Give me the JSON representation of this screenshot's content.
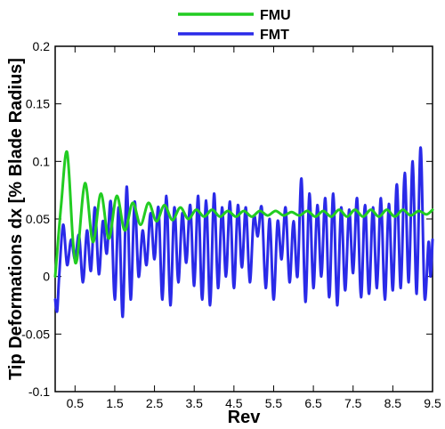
{
  "chart_data": {
    "type": "line",
    "title": "",
    "xlabel": "Rev",
    "ylabel": "Tip Deformations dx [% Blade Radius]",
    "xlim": [
      0,
      9.5
    ],
    "ylim": [
      -0.1,
      0.2
    ],
    "xticks": [
      0.5,
      1.5,
      2.5,
      3.5,
      4.5,
      5.5,
      6.5,
      7.5,
      8.5,
      9.5
    ],
    "xtick_labels": [
      "0.5",
      "1.5",
      "2.5",
      "3.5",
      "4.5",
      "5.5",
      "6.5",
      "7.5",
      "8.5",
      "9.5"
    ],
    "yticks": [
      -0.1,
      -0.05,
      0,
      0.05,
      0.1,
      0.15,
      0.2
    ],
    "ytick_labels": [
      "-0.1",
      "-0.05",
      "0",
      "0.05",
      "0.1",
      "0.15",
      "0.2"
    ],
    "legend_position": "top-center",
    "grid": false,
    "series": [
      {
        "name": "FMU",
        "color": "#22cc22",
        "x": [
          0.0,
          0.15,
          0.3,
          0.45,
          0.55,
          0.75,
          0.95,
          1.15,
          1.35,
          1.55,
          1.75,
          1.95,
          2.15,
          2.35,
          2.55,
          2.75,
          2.95,
          3.15,
          3.35,
          3.55,
          3.75,
          3.95,
          4.15,
          4.35,
          4.55,
          4.75,
          4.95,
          5.15,
          5.35,
          5.55,
          5.75,
          5.95,
          6.15,
          6.35,
          6.55,
          6.75,
          6.95,
          7.15,
          7.35,
          7.55,
          7.75,
          7.95,
          8.15,
          8.35,
          8.55,
          8.75,
          8.95,
          9.15,
          9.35,
          9.5
        ],
        "y": [
          0.0,
          0.062,
          0.108,
          0.03,
          0.015,
          0.081,
          0.03,
          0.072,
          0.033,
          0.07,
          0.04,
          0.064,
          0.045,
          0.064,
          0.048,
          0.062,
          0.049,
          0.06,
          0.05,
          0.058,
          0.052,
          0.058,
          0.052,
          0.057,
          0.052,
          0.057,
          0.052,
          0.057,
          0.053,
          0.057,
          0.053,
          0.056,
          0.053,
          0.057,
          0.052,
          0.057,
          0.052,
          0.058,
          0.052,
          0.058,
          0.052,
          0.058,
          0.052,
          0.058,
          0.052,
          0.058,
          0.053,
          0.057,
          0.054,
          0.058
        ]
      },
      {
        "name": "FMT",
        "color": "#2a2ae8",
        "x": [
          0.0,
          0.05,
          0.1,
          0.2,
          0.3,
          0.4,
          0.5,
          0.6,
          0.7,
          0.8,
          0.9,
          1.0,
          1.1,
          1.2,
          1.3,
          1.4,
          1.5,
          1.6,
          1.7,
          1.8,
          1.9,
          2.0,
          2.1,
          2.2,
          2.3,
          2.4,
          2.5,
          2.6,
          2.7,
          2.8,
          2.9,
          3.0,
          3.1,
          3.2,
          3.3,
          3.4,
          3.5,
          3.6,
          3.7,
          3.8,
          3.9,
          4.0,
          4.1,
          4.2,
          4.3,
          4.4,
          4.5,
          4.6,
          4.7,
          4.8,
          4.9,
          5.0,
          5.1,
          5.2,
          5.3,
          5.4,
          5.5,
          5.6,
          5.7,
          5.8,
          5.9,
          6.0,
          6.1,
          6.2,
          6.3,
          6.4,
          6.5,
          6.6,
          6.7,
          6.8,
          6.9,
          7.0,
          7.1,
          7.2,
          7.3,
          7.4,
          7.5,
          7.6,
          7.7,
          7.8,
          7.9,
          8.0,
          8.1,
          8.2,
          8.3,
          8.4,
          8.5,
          8.6,
          8.7,
          8.8,
          8.9,
          9.0,
          9.1,
          9.2,
          9.3,
          9.4,
          9.45,
          9.5
        ],
        "y": [
          -0.02,
          -0.03,
          0.0,
          0.045,
          0.01,
          0.032,
          0.015,
          0.036,
          -0.005,
          0.04,
          0.005,
          0.06,
          0.002,
          0.048,
          0.02,
          0.065,
          -0.02,
          0.06,
          -0.035,
          0.078,
          -0.02,
          0.065,
          0.0,
          0.04,
          0.01,
          0.055,
          0.015,
          0.06,
          -0.02,
          0.07,
          -0.025,
          0.06,
          -0.005,
          0.055,
          0.012,
          0.062,
          -0.008,
          0.07,
          -0.02,
          0.066,
          -0.025,
          0.072,
          -0.01,
          0.06,
          0.0,
          0.065,
          -0.01,
          0.062,
          0.008,
          0.06,
          -0.005,
          0.052,
          0.035,
          0.06,
          -0.01,
          0.05,
          -0.02,
          0.048,
          0.015,
          0.06,
          -0.005,
          0.048,
          0.0,
          0.085,
          -0.022,
          0.072,
          -0.01,
          0.062,
          0.0,
          0.068,
          -0.018,
          0.072,
          -0.025,
          0.06,
          -0.012,
          0.058,
          0.003,
          0.068,
          -0.018,
          0.062,
          -0.015,
          0.06,
          -0.01,
          0.068,
          -0.02,
          0.063,
          -0.012,
          0.08,
          -0.01,
          0.09,
          -0.005,
          0.1,
          -0.015,
          0.112,
          -0.018,
          0.03,
          0.0,
          0.032
        ]
      }
    ]
  }
}
